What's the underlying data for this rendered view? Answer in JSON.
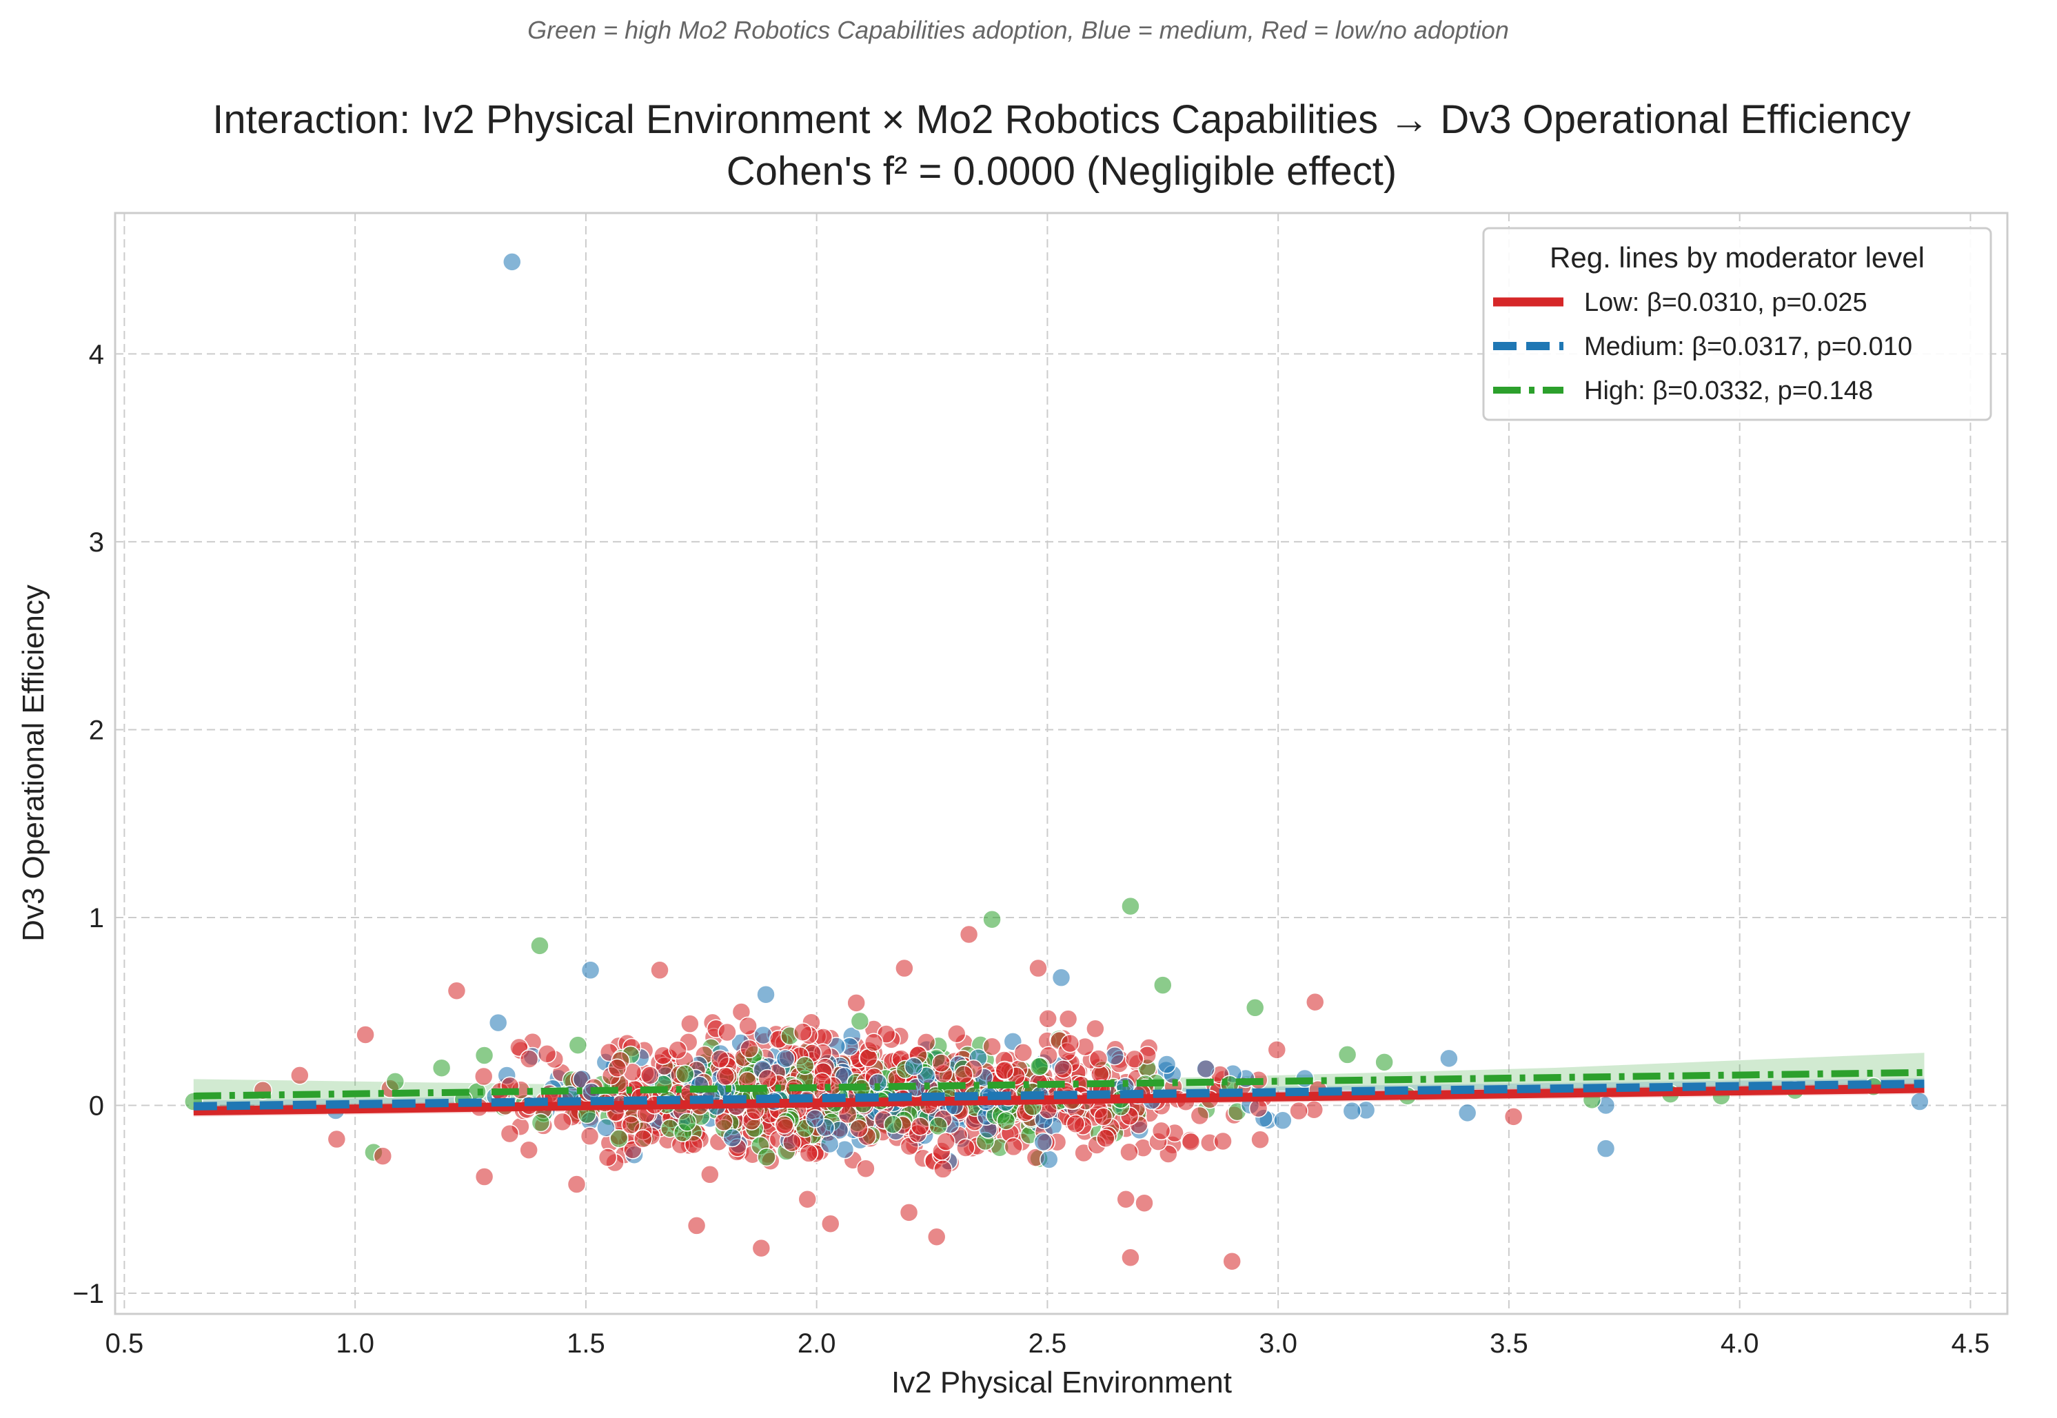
{
  "chart_data": {
    "type": "scatter",
    "suptitle": "Green = high Mo2 Robotics Capabilities adoption, Blue = medium, Red = low/no adoption",
    "title_line1": "Interaction: Iv2 Physical Environment × Mo2 Robotics Capabilities → Dv3 Operational Efficiency",
    "title_line2": "Cohen's f² = 0.0000 (Negligible effect)",
    "xlabel": "Iv2 Physical Environment",
    "ylabel": "Dv3 Operational Efficiency",
    "xlim": [
      0.48,
      4.58
    ],
    "ylim": [
      -1.11,
      4.75
    ],
    "xticks": [
      0.5,
      1.0,
      1.5,
      2.0,
      2.5,
      3.0,
      3.5,
      4.0,
      4.5
    ],
    "xtick_labels": [
      "0.5",
      "1.0",
      "1.5",
      "2.0",
      "2.5",
      "3.0",
      "3.5",
      "4.0",
      "4.5"
    ],
    "yticks": [
      -1,
      0,
      1,
      2,
      3,
      4
    ],
    "ytick_labels": [
      "−1",
      "0",
      "1",
      "2",
      "3",
      "4"
    ],
    "grid": true,
    "legend": {
      "title": "Reg. lines by moderator level",
      "placement": "top-right",
      "entries": [
        "Low: β=0.0310, p=0.025",
        "Medium: β=0.0317, p=0.010",
        "High: β=0.0332, p=0.148"
      ]
    },
    "colors": {
      "low": "#d62728",
      "medium": "#1f77b4",
      "high": "#2ca02c"
    },
    "regression_lines": [
      {
        "level": "low",
        "beta": 0.031,
        "p": 0.025,
        "x": [
          0.65,
          4.4
        ],
        "y": [
          -0.03,
          0.09
        ],
        "style": "solid"
      },
      {
        "level": "medium",
        "beta": 0.0317,
        "p": 0.01,
        "x": [
          0.65,
          4.4
        ],
        "y": [
          -0.005,
          0.115
        ],
        "style": "dashed"
      },
      {
        "level": "high",
        "beta": 0.0332,
        "p": 0.148,
        "x": [
          0.65,
          4.4
        ],
        "y": [
          0.05,
          0.175
        ],
        "style": "dashdot"
      }
    ],
    "confidence_band": {
      "level": "high",
      "x": [
        0.65,
        1.5,
        2.3,
        3.0,
        3.6,
        4.4
      ],
      "upper": [
        0.14,
        0.11,
        0.12,
        0.16,
        0.2,
        0.28
      ],
      "lower": [
        -0.04,
        0.04,
        0.06,
        0.08,
        0.09,
        0.07
      ]
    },
    "outlier_points": [
      {
        "x": 1.34,
        "y": 4.49,
        "group": "medium"
      },
      {
        "x": 2.68,
        "y": 1.06,
        "group": "high"
      },
      {
        "x": 2.38,
        "y": 0.99,
        "group": "high"
      },
      {
        "x": 2.33,
        "y": 0.91,
        "group": "low"
      },
      {
        "x": 1.4,
        "y": 0.85,
        "group": "high"
      },
      {
        "x": 1.51,
        "y": 0.72,
        "group": "medium"
      },
      {
        "x": 1.66,
        "y": 0.72,
        "group": "low"
      },
      {
        "x": 2.19,
        "y": 0.73,
        "group": "low"
      },
      {
        "x": 2.48,
        "y": 0.73,
        "group": "low"
      },
      {
        "x": 2.53,
        "y": 0.68,
        "group": "medium"
      },
      {
        "x": 2.75,
        "y": 0.64,
        "group": "high"
      },
      {
        "x": 1.22,
        "y": 0.61,
        "group": "low"
      },
      {
        "x": 1.89,
        "y": 0.59,
        "group": "medium"
      },
      {
        "x": 3.08,
        "y": 0.55,
        "group": "low"
      },
      {
        "x": 2.95,
        "y": 0.52,
        "group": "high"
      },
      {
        "x": 1.31,
        "y": 0.44,
        "group": "medium"
      },
      {
        "x": 3.37,
        "y": 0.25,
        "group": "medium"
      },
      {
        "x": 3.15,
        "y": 0.27,
        "group": "high"
      },
      {
        "x": 3.23,
        "y": 0.23,
        "group": "high"
      },
      {
        "x": 4.39,
        "y": 0.02,
        "group": "medium"
      },
      {
        "x": 3.71,
        "y": 0.0,
        "group": "medium"
      },
      {
        "x": 3.41,
        "y": -0.04,
        "group": "medium"
      },
      {
        "x": 3.51,
        "y": -0.06,
        "group": "low"
      },
      {
        "x": 3.71,
        "y": -0.23,
        "group": "medium"
      },
      {
        "x": 0.65,
        "y": 0.02,
        "group": "high"
      },
      {
        "x": 0.8,
        "y": 0.08,
        "group": "low"
      },
      {
        "x": 0.88,
        "y": 0.16,
        "group": "low"
      },
      {
        "x": 0.96,
        "y": -0.18,
        "group": "low"
      },
      {
        "x": 1.04,
        "y": -0.25,
        "group": "high"
      },
      {
        "x": 1.06,
        "y": -0.27,
        "group": "low"
      },
      {
        "x": 1.28,
        "y": -0.38,
        "group": "low"
      },
      {
        "x": 1.48,
        "y": -0.42,
        "group": "low"
      },
      {
        "x": 1.74,
        "y": -0.64,
        "group": "low"
      },
      {
        "x": 1.88,
        "y": -0.76,
        "group": "low"
      },
      {
        "x": 2.03,
        "y": -0.63,
        "group": "low"
      },
      {
        "x": 2.26,
        "y": -0.7,
        "group": "low"
      },
      {
        "x": 2.68,
        "y": -0.81,
        "group": "low"
      },
      {
        "x": 2.9,
        "y": -0.83,
        "group": "low"
      },
      {
        "x": 1.98,
        "y": -0.5,
        "group": "low"
      },
      {
        "x": 2.2,
        "y": -0.57,
        "group": "low"
      },
      {
        "x": 2.67,
        "y": -0.5,
        "group": "low"
      },
      {
        "x": 2.71,
        "y": -0.52,
        "group": "low"
      },
      {
        "x": 3.16,
        "y": -0.03,
        "group": "medium"
      },
      {
        "x": 3.01,
        "y": -0.08,
        "group": "medium"
      },
      {
        "x": 3.28,
        "y": 0.05,
        "group": "high"
      },
      {
        "x": 3.85,
        "y": 0.06,
        "group": "high"
      },
      {
        "x": 3.96,
        "y": 0.05,
        "group": "high"
      },
      {
        "x": 4.12,
        "y": 0.08,
        "group": "high"
      },
      {
        "x": 4.29,
        "y": 0.1,
        "group": "high"
      },
      {
        "x": 3.68,
        "y": 0.03,
        "group": "high"
      }
    ],
    "cloud": {
      "description_of_distribution": "dense cluster of points",
      "x_range": [
        0.9,
        3.2
      ],
      "x_center": 2.1,
      "y_center": 0.05,
      "y_spread": 0.2,
      "n_low": 760,
      "n_medium": 230,
      "n_high": 300
    }
  }
}
